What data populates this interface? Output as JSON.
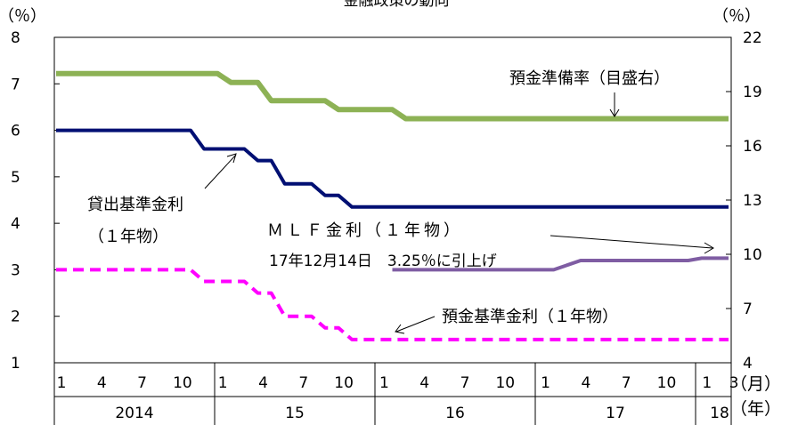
{
  "chart_data": {
    "type": "line",
    "title": "金融政策の動向",
    "left_axis_unit": "（％）",
    "right_axis_unit": "（％）",
    "month_axis_unit": "（月）",
    "year_axis_unit": "（年）",
    "ylim_left": [
      1,
      8
    ],
    "ylim_right": [
      4,
      22
    ],
    "yticks_left": [
      "1",
      "2",
      "3",
      "4",
      "5",
      "6",
      "7",
      "8"
    ],
    "yticks_right": [
      "4",
      "7",
      "10",
      "13",
      "16",
      "19",
      "22"
    ],
    "month_ticks": [
      "1",
      "4",
      "7",
      "10",
      "1",
      "4",
      "7",
      "10",
      "1",
      "4",
      "7",
      "10",
      "1",
      "4",
      "7",
      "10",
      "1",
      "3"
    ],
    "year_labels": [
      "2014",
      "15",
      "16",
      "17",
      "18"
    ],
    "grid": false,
    "series": [
      {
        "name": "預金準備率（目盛右）",
        "axis": "right",
        "color": "#8db255",
        "style": "solid",
        "points": [
          [
            "2014-01",
            20.0
          ],
          [
            "2015-01",
            20.0
          ],
          [
            "2015-02",
            19.5
          ],
          [
            "2015-04",
            19.5
          ],
          [
            "2015-05",
            18.5
          ],
          [
            "2015-09",
            18.5
          ],
          [
            "2015-10",
            18.0
          ],
          [
            "2016-02",
            18.0
          ],
          [
            "2016-03",
            17.5
          ],
          [
            "2018-03",
            17.5
          ]
        ]
      },
      {
        "name": "貸出基準金利（１年物）",
        "axis": "left",
        "color": "#000f73",
        "style": "solid",
        "points": [
          [
            "2014-01",
            6.0
          ],
          [
            "2014-11",
            6.0
          ],
          [
            "2014-12",
            5.6
          ],
          [
            "2015-03",
            5.6
          ],
          [
            "2015-04",
            5.35
          ],
          [
            "2015-05",
            5.35
          ],
          [
            "2015-06",
            4.85
          ],
          [
            "2015-08",
            4.85
          ],
          [
            "2015-09",
            4.6
          ],
          [
            "2015-10",
            4.6
          ],
          [
            "2015-11",
            4.35
          ],
          [
            "2018-03",
            4.35
          ]
        ]
      },
      {
        "name": "ＭＬＦ金利（１年物）",
        "axis": "left",
        "color": "#7f5da3",
        "style": "solid",
        "points": [
          [
            "2016-02",
            3.0
          ],
          [
            "2017-02",
            3.0
          ],
          [
            "2017-03",
            3.1
          ],
          [
            "2017-04",
            3.2
          ],
          [
            "2017-12",
            3.2
          ],
          [
            "2018-01",
            3.25
          ],
          [
            "2018-03",
            3.25
          ]
        ]
      },
      {
        "name": "預金基準金利（１年物）",
        "axis": "left",
        "color": "#ff00ff",
        "style": "dashed",
        "points": [
          [
            "2014-01",
            3.0
          ],
          [
            "2014-11",
            3.0
          ],
          [
            "2014-12",
            2.75
          ],
          [
            "2015-03",
            2.75
          ],
          [
            "2015-04",
            2.5
          ],
          [
            "2015-05",
            2.5
          ],
          [
            "2015-06",
            2.0
          ],
          [
            "2015-08",
            2.0
          ],
          [
            "2015-09",
            1.75
          ],
          [
            "2015-10",
            1.75
          ],
          [
            "2015-11",
            1.5
          ],
          [
            "2018-03",
            1.5
          ]
        ]
      }
    ],
    "annotations": [
      {
        "id": "reserve",
        "lines": [
          "預金準備率（目盛右）"
        ]
      },
      {
        "id": "lending",
        "lines": [
          "貸出基準金利",
          "（１年物）"
        ]
      },
      {
        "id": "mlf",
        "lines": [
          "ＭＬＦ金利（１年物）",
          "17年12月14日　3.25％に引上げ"
        ]
      },
      {
        "id": "deposit",
        "lines": [
          "預金基準金利（１年物）"
        ]
      }
    ]
  }
}
